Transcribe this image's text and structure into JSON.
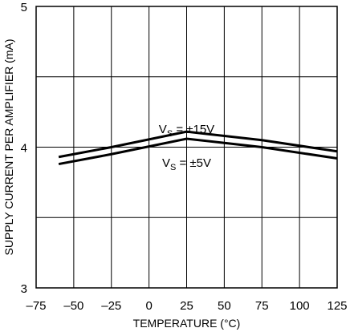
{
  "chart_data": {
    "type": "line",
    "xlabel": "TEMPERATURE (°C)",
    "ylabel": "SUPPLY CURRENT PER AMPLIFIER (mA)",
    "xlim": [
      -75,
      125
    ],
    "ylim": [
      3,
      5
    ],
    "x_ticks": [
      "–75",
      "–50",
      "–25",
      "0",
      "25",
      "50",
      "75",
      "100",
      "125"
    ],
    "y_ticks": [
      "3",
      "4",
      "5"
    ],
    "x_tick_values": [
      -75,
      -50,
      -25,
      0,
      25,
      50,
      75,
      100,
      125
    ],
    "y_tick_values": [
      3,
      4,
      5
    ],
    "y_grid_values": [
      3,
      3.5,
      4,
      4.5,
      5
    ],
    "grid": true,
    "series": [
      {
        "label_main": "V",
        "label_sub": "S",
        "label_rest": " = ±15V",
        "label_at": [
          25,
          4.1
        ],
        "x": [
          -60,
          -25,
          25,
          75,
          125
        ],
        "y": [
          3.93,
          4.0,
          4.11,
          4.05,
          3.97
        ]
      },
      {
        "label_main": "V",
        "label_sub": "S",
        "label_rest": " = ±5V",
        "label_at": [
          25,
          3.86
        ],
        "x": [
          -60,
          -25,
          25,
          75,
          125
        ],
        "y": [
          3.88,
          3.95,
          4.06,
          4.0,
          3.92
        ]
      }
    ]
  }
}
